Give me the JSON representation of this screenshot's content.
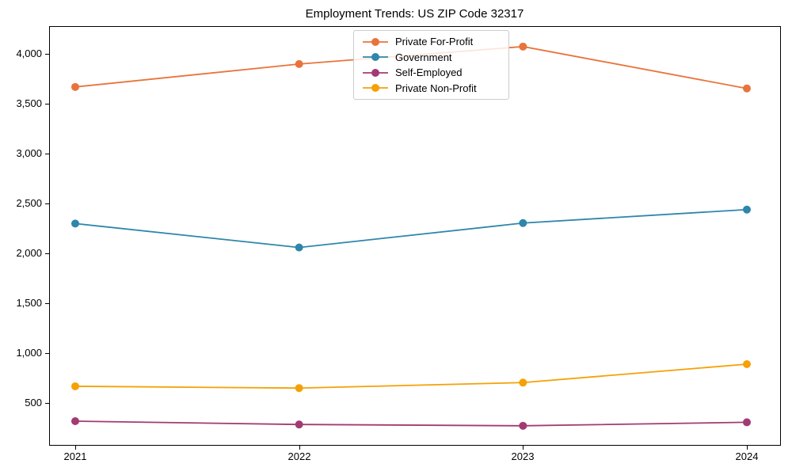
{
  "title": "Employment Trends: US ZIP Code 32317",
  "chart_data": {
    "type": "line",
    "title": "Employment Trends: US ZIP Code 32317",
    "xlabel": "",
    "ylabel": "",
    "categories": [
      "2021",
      "2022",
      "2023",
      "2024"
    ],
    "series": [
      {
        "name": "Private For-Profit",
        "color": "#E8743B",
        "values": [
          3670,
          3900,
          4075,
          3655
        ]
      },
      {
        "name": "Government",
        "color": "#2E86AB",
        "values": [
          2300,
          2060,
          2305,
          2440
        ]
      },
      {
        "name": "Self-Employed",
        "color": "#A23B72",
        "values": [
          318,
          285,
          272,
          307
        ]
      },
      {
        "name": "Private Non-Profit",
        "color": "#F5A105",
        "values": [
          668,
          650,
          705,
          890
        ]
      }
    ],
    "ylim": [
      80,
      4280
    ],
    "yticks": [
      500,
      1000,
      1500,
      2000,
      2500,
      3000,
      3500,
      4000
    ],
    "ytick_labels": [
      "500",
      "1,000",
      "1,500",
      "2,000",
      "2,500",
      "3,000",
      "3,500",
      "4,000"
    ],
    "grid": false,
    "legend_position": "upper center",
    "marker": "circle",
    "axis_color": "#000000"
  }
}
